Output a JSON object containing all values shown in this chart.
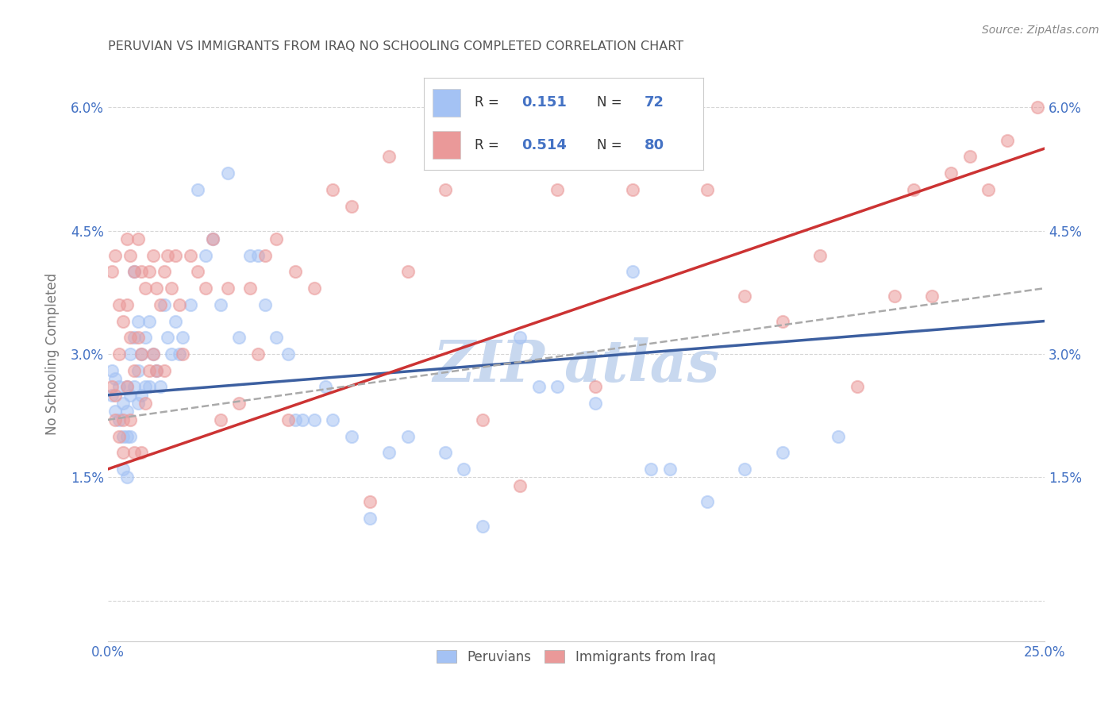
{
  "title": "PERUVIAN VS IMMIGRANTS FROM IRAQ NO SCHOOLING COMPLETED CORRELATION CHART",
  "source": "Source: ZipAtlas.com",
  "ylabel": "No Schooling Completed",
  "x_min": 0.0,
  "x_max": 0.25,
  "y_min": -0.005,
  "y_max": 0.065,
  "x_ticks": [
    0.0,
    0.25
  ],
  "x_tick_labels": [
    "0.0%",
    "25.0%"
  ],
  "y_ticks": [
    0.0,
    0.015,
    0.03,
    0.045,
    0.06
  ],
  "y_tick_labels": [
    "",
    "1.5%",
    "3.0%",
    "4.5%",
    "6.0%"
  ],
  "peruvian_R": 0.151,
  "peruvian_N": 72,
  "iraq_R": 0.514,
  "iraq_N": 80,
  "blue_scatter_color": "#a4c2f4",
  "pink_scatter_color": "#ea9999",
  "blue_line_color": "#3c5fa0",
  "pink_line_color": "#cc3333",
  "dashed_line_color": "#aaaaaa",
  "background_color": "#ffffff",
  "watermark_color": "#c8d8ef",
  "legend_text_color": "#4472c4",
  "title_color": "#555555",
  "blue_line_y0": 0.025,
  "blue_line_y1": 0.034,
  "pink_line_y0": 0.016,
  "pink_line_y1": 0.055,
  "dash_line_y0": 0.022,
  "dash_line_y1": 0.038,
  "peruvian_x": [
    0.001,
    0.001,
    0.002,
    0.002,
    0.003,
    0.003,
    0.004,
    0.004,
    0.004,
    0.005,
    0.005,
    0.005,
    0.005,
    0.006,
    0.006,
    0.006,
    0.007,
    0.007,
    0.007,
    0.008,
    0.008,
    0.008,
    0.009,
    0.009,
    0.01,
    0.01,
    0.011,
    0.011,
    0.012,
    0.013,
    0.014,
    0.015,
    0.016,
    0.017,
    0.018,
    0.019,
    0.02,
    0.022,
    0.024,
    0.026,
    0.028,
    0.03,
    0.032,
    0.035,
    0.038,
    0.04,
    0.042,
    0.045,
    0.048,
    0.05,
    0.052,
    0.055,
    0.058,
    0.06,
    0.065,
    0.07,
    0.075,
    0.08,
    0.09,
    0.095,
    0.1,
    0.11,
    0.115,
    0.12,
    0.13,
    0.14,
    0.145,
    0.15,
    0.16,
    0.17,
    0.18,
    0.195
  ],
  "peruvian_y": [
    0.028,
    0.025,
    0.027,
    0.023,
    0.026,
    0.022,
    0.024,
    0.02,
    0.016,
    0.026,
    0.023,
    0.02,
    0.015,
    0.03,
    0.025,
    0.02,
    0.04,
    0.032,
    0.026,
    0.034,
    0.028,
    0.024,
    0.03,
    0.025,
    0.032,
    0.026,
    0.034,
    0.026,
    0.03,
    0.028,
    0.026,
    0.036,
    0.032,
    0.03,
    0.034,
    0.03,
    0.032,
    0.036,
    0.05,
    0.042,
    0.044,
    0.036,
    0.052,
    0.032,
    0.042,
    0.042,
    0.036,
    0.032,
    0.03,
    0.022,
    0.022,
    0.022,
    0.026,
    0.022,
    0.02,
    0.01,
    0.018,
    0.02,
    0.018,
    0.016,
    0.009,
    0.032,
    0.026,
    0.026,
    0.024,
    0.04,
    0.016,
    0.016,
    0.012,
    0.016,
    0.018,
    0.02
  ],
  "iraq_x": [
    0.001,
    0.001,
    0.002,
    0.002,
    0.002,
    0.003,
    0.003,
    0.003,
    0.004,
    0.004,
    0.004,
    0.005,
    0.005,
    0.005,
    0.006,
    0.006,
    0.006,
    0.007,
    0.007,
    0.007,
    0.008,
    0.008,
    0.009,
    0.009,
    0.009,
    0.01,
    0.01,
    0.011,
    0.011,
    0.012,
    0.012,
    0.013,
    0.013,
    0.014,
    0.015,
    0.015,
    0.016,
    0.017,
    0.018,
    0.019,
    0.02,
    0.022,
    0.024,
    0.026,
    0.028,
    0.03,
    0.032,
    0.035,
    0.038,
    0.04,
    0.042,
    0.045,
    0.048,
    0.05,
    0.055,
    0.06,
    0.065,
    0.07,
    0.075,
    0.08,
    0.09,
    0.1,
    0.11,
    0.12,
    0.13,
    0.14,
    0.15,
    0.16,
    0.17,
    0.18,
    0.19,
    0.2,
    0.21,
    0.215,
    0.22,
    0.225,
    0.23,
    0.235,
    0.24,
    0.248
  ],
  "iraq_y": [
    0.04,
    0.026,
    0.042,
    0.025,
    0.022,
    0.036,
    0.03,
    0.02,
    0.034,
    0.022,
    0.018,
    0.044,
    0.036,
    0.026,
    0.042,
    0.032,
    0.022,
    0.04,
    0.028,
    0.018,
    0.044,
    0.032,
    0.04,
    0.03,
    0.018,
    0.038,
    0.024,
    0.04,
    0.028,
    0.042,
    0.03,
    0.038,
    0.028,
    0.036,
    0.04,
    0.028,
    0.042,
    0.038,
    0.042,
    0.036,
    0.03,
    0.042,
    0.04,
    0.038,
    0.044,
    0.022,
    0.038,
    0.024,
    0.038,
    0.03,
    0.042,
    0.044,
    0.022,
    0.04,
    0.038,
    0.05,
    0.048,
    0.012,
    0.054,
    0.04,
    0.05,
    0.022,
    0.014,
    0.05,
    0.026,
    0.05,
    0.054,
    0.05,
    0.037,
    0.034,
    0.042,
    0.026,
    0.037,
    0.05,
    0.037,
    0.052,
    0.054,
    0.05,
    0.056,
    0.06
  ]
}
